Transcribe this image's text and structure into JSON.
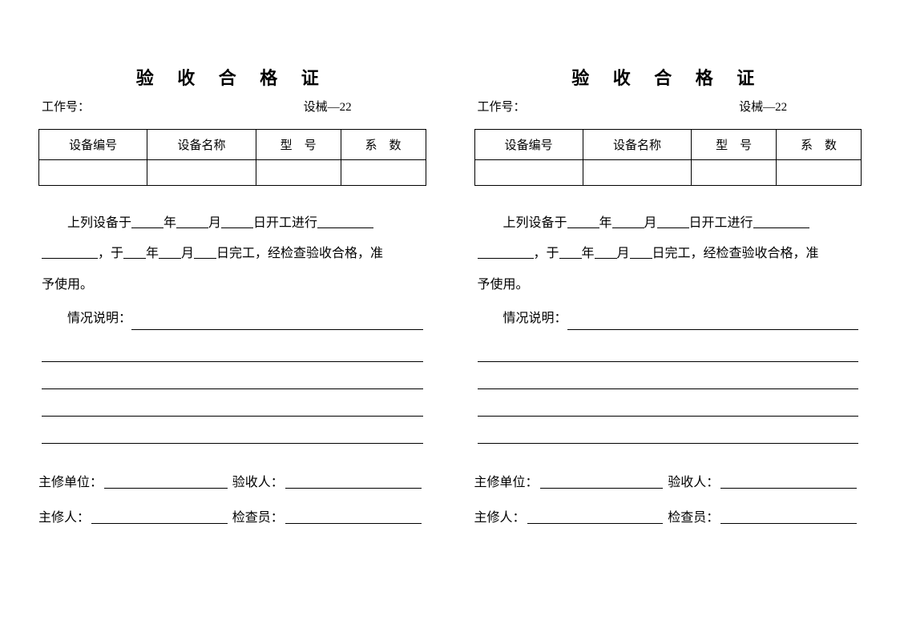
{
  "cert": {
    "title": "验 收 合 格 证",
    "job_label": "工作号：",
    "form_code": "设械—22",
    "table_headers": {
      "col1": "设备编号",
      "col2": "设备名称",
      "col3": "型　号",
      "col4": "系　数"
    },
    "body": {
      "t1": "上列设备于",
      "year": "年",
      "month": "月",
      "day_start": "日开工进行",
      "comma1": "，于",
      "comma2": "日完工，经检查验收合格，准",
      "end": "予使用。",
      "note_label": "情况说明："
    },
    "signatures": {
      "unit_label": "主修单位：",
      "acceptor_label": "验收人：",
      "repairer_label": "主修人：",
      "inspector_label": "检查员："
    }
  }
}
